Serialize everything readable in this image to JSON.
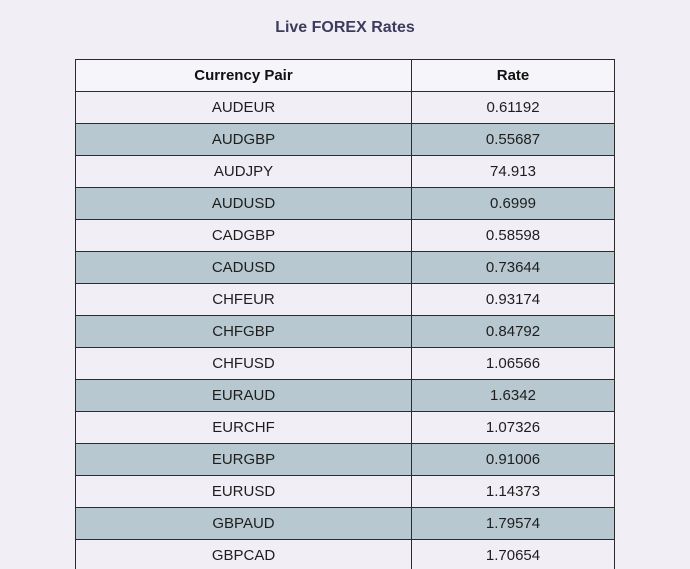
{
  "page": {
    "title": "Live FOREX Rates"
  },
  "table": {
    "headers": {
      "pair": "Currency Pair",
      "rate": "Rate"
    },
    "rows": [
      {
        "pair": "AUDEUR",
        "rate": "0.61192"
      },
      {
        "pair": "AUDGBP",
        "rate": "0.55687"
      },
      {
        "pair": "AUDJPY",
        "rate": "74.913"
      },
      {
        "pair": "AUDUSD",
        "rate": "0.6999"
      },
      {
        "pair": "CADGBP",
        "rate": "0.58598"
      },
      {
        "pair": "CADUSD",
        "rate": "0.73644"
      },
      {
        "pair": "CHFEUR",
        "rate": "0.93174"
      },
      {
        "pair": "CHFGBP",
        "rate": "0.84792"
      },
      {
        "pair": "CHFUSD",
        "rate": "1.06566"
      },
      {
        "pair": "EURAUD",
        "rate": "1.6342"
      },
      {
        "pair": "EURCHF",
        "rate": "1.07326"
      },
      {
        "pair": "EURGBP",
        "rate": "0.91006"
      },
      {
        "pair": "EURUSD",
        "rate": "1.14373"
      },
      {
        "pair": "GBPAUD",
        "rate": "1.79574"
      },
      {
        "pair": "GBPCAD",
        "rate": "1.70654"
      }
    ]
  },
  "colors": {
    "background": "#f1eff5",
    "stripe": "#b7c8d1",
    "title": "#3d3c5e"
  }
}
